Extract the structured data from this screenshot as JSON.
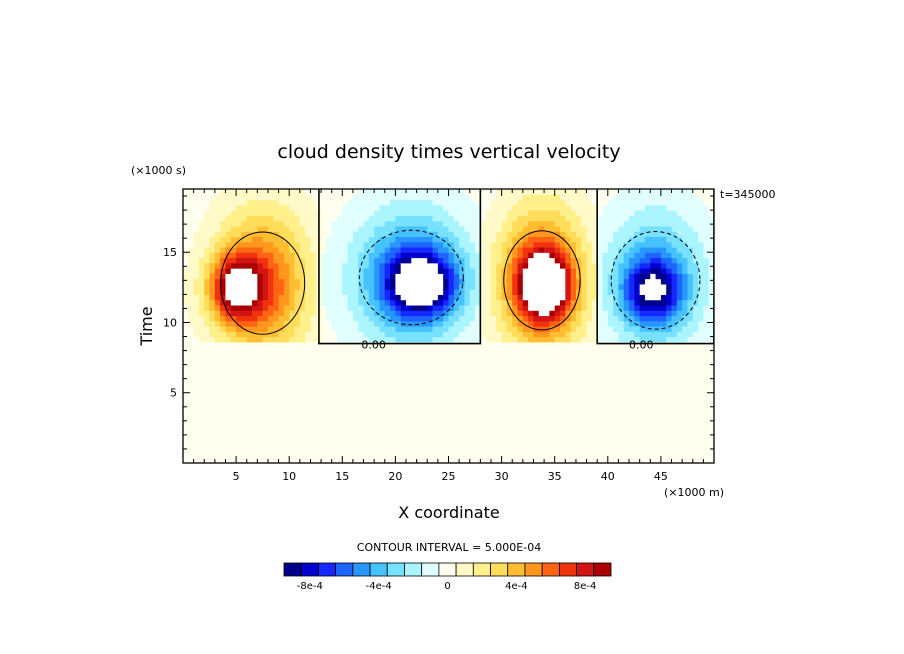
{
  "chart_data": {
    "type": "heatmap",
    "title": "cloud density times vertical velocity",
    "xlabel": "X coordinate",
    "ylabel": "Time",
    "x_unit_label": "(×1000 m)",
    "y_unit_label": "(×1000 s)",
    "time_label": "t=345000",
    "xlim": [
      0,
      50
    ],
    "ylim": [
      0,
      19.5
    ],
    "xticks": [
      5,
      10,
      15,
      20,
      25,
      30,
      35,
      40,
      45
    ],
    "xtick_labels": [
      "5",
      "10",
      "15",
      "20",
      "25",
      "30",
      "35",
      "40",
      "45"
    ],
    "yticks": [
      5,
      10,
      15
    ],
    "ytick_labels": [
      "5",
      "10",
      "15"
    ],
    "zero_contour_labels": [
      {
        "text": "0.00",
        "x": 16.8,
        "y": 8.5
      },
      {
        "text": "0.00",
        "x": 42.0,
        "y": 8.5
      }
    ],
    "contour_interval_text": "CONTOUR INTERVAL = 5.000E-04",
    "colorbar": {
      "colors": [
        "#00008b",
        "#0000cd",
        "#1428ff",
        "#1e64ff",
        "#2896ff",
        "#46c3ff",
        "#78e1ff",
        "#aaf5ff",
        "#e1ffff",
        "#fffff0",
        "#fffac8",
        "#fff08c",
        "#ffdc5a",
        "#ffbe32",
        "#ff961e",
        "#ff6414",
        "#f0320f",
        "#d21414",
        "#aa0000"
      ],
      "tick_labels": [
        "-8e-4",
        "-4e-4",
        "0",
        "4e-4",
        "8e-4"
      ],
      "tick_values": [
        -0.0008,
        -0.0004,
        0,
        0.0004,
        0.0008
      ]
    },
    "cells": [
      {
        "sign": 1,
        "x0": 0,
        "x1": 12.8,
        "cx": 7.5,
        "cy": 12.8,
        "rx": 5.5,
        "ry": 6.5,
        "amp": 0.00105,
        "peak_x": 5.0,
        "peak_y": 12.5
      },
      {
        "sign": -1,
        "x0": 12.8,
        "x1": 28.0,
        "cx": 21.5,
        "cy": 13.2,
        "rx": 6.8,
        "ry": 6.0,
        "amp": 0.00105,
        "peak_x": 22.5,
        "peak_y": 12.8
      },
      {
        "sign": 1,
        "x0": 28.0,
        "x1": 39.0,
        "cx": 33.8,
        "cy": 13.0,
        "rx": 5.0,
        "ry": 6.3,
        "amp": 0.00125,
        "peak_x": 34.0,
        "peak_y": 12.7
      },
      {
        "sign": -1,
        "x0": 39.0,
        "x1": 50,
        "cx": 44.5,
        "cy": 13.0,
        "rx": 5.8,
        "ry": 6.2,
        "amp": 0.00082,
        "peak_x": 44.2,
        "peak_y": 12.3
      }
    ],
    "cloud_base_y": 8.5,
    "data_range": [
      -0.0009,
      0.0009
    ]
  }
}
